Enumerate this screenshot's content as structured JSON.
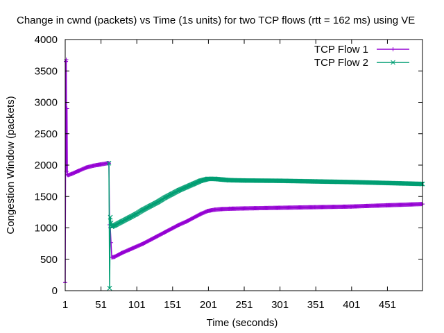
{
  "chart_data": {
    "type": "line",
    "title": "Change in cwnd (packets) vs Time (1s units) for two TCP flows (rtt = 162 ms) using VE",
    "xlabel": "Time (seconds)",
    "ylabel": "Congestion Window (packets)",
    "xlim": [
      1,
      500
    ],
    "ylim": [
      0,
      4000
    ],
    "x_ticks": [
      1,
      51,
      101,
      151,
      201,
      251,
      301,
      351,
      401,
      451
    ],
    "y_ticks": [
      0,
      500,
      1000,
      1500,
      2000,
      2500,
      3000,
      3500,
      4000
    ],
    "grid": false,
    "legend_position": "top-right",
    "series": [
      {
        "name": "TCP Flow 1",
        "color": "#9400d3",
        "marker": "plus",
        "x": [
          1,
          2,
          2.5,
          3,
          3.5,
          4,
          5,
          10,
          20,
          30,
          40,
          50,
          60,
          62,
          63,
          64,
          66,
          70,
          80,
          90,
          100,
          110,
          120,
          130,
          140,
          150,
          160,
          170,
          180,
          190,
          200,
          210,
          220,
          230,
          250,
          300,
          350,
          400,
          450,
          500
        ],
        "y": [
          130,
          3650,
          3680,
          1900,
          2900,
          1850,
          1840,
          1860,
          1910,
          1960,
          1990,
          2010,
          2030,
          2030,
          1050,
          1000,
          530,
          540,
          600,
          650,
          700,
          750,
          810,
          870,
          930,
          990,
          1050,
          1100,
          1160,
          1220,
          1270,
          1290,
          1300,
          1305,
          1310,
          1320,
          1330,
          1340,
          1360,
          1380
        ]
      },
      {
        "name": "TCP Flow 2",
        "color": "#009e73",
        "marker": "cross",
        "x": [
          62,
          63,
          64,
          65,
          66,
          70,
          80,
          90,
          100,
          110,
          120,
          130,
          140,
          150,
          160,
          170,
          180,
          190,
          200,
          210,
          220,
          230,
          250,
          300,
          350,
          400,
          450,
          500
        ],
        "y": [
          2030,
          40,
          1170,
          1080,
          1020,
          1040,
          1100,
          1160,
          1220,
          1290,
          1350,
          1410,
          1480,
          1540,
          1600,
          1650,
          1700,
          1750,
          1780,
          1780,
          1770,
          1760,
          1755,
          1750,
          1740,
          1730,
          1715,
          1700
        ]
      }
    ]
  }
}
